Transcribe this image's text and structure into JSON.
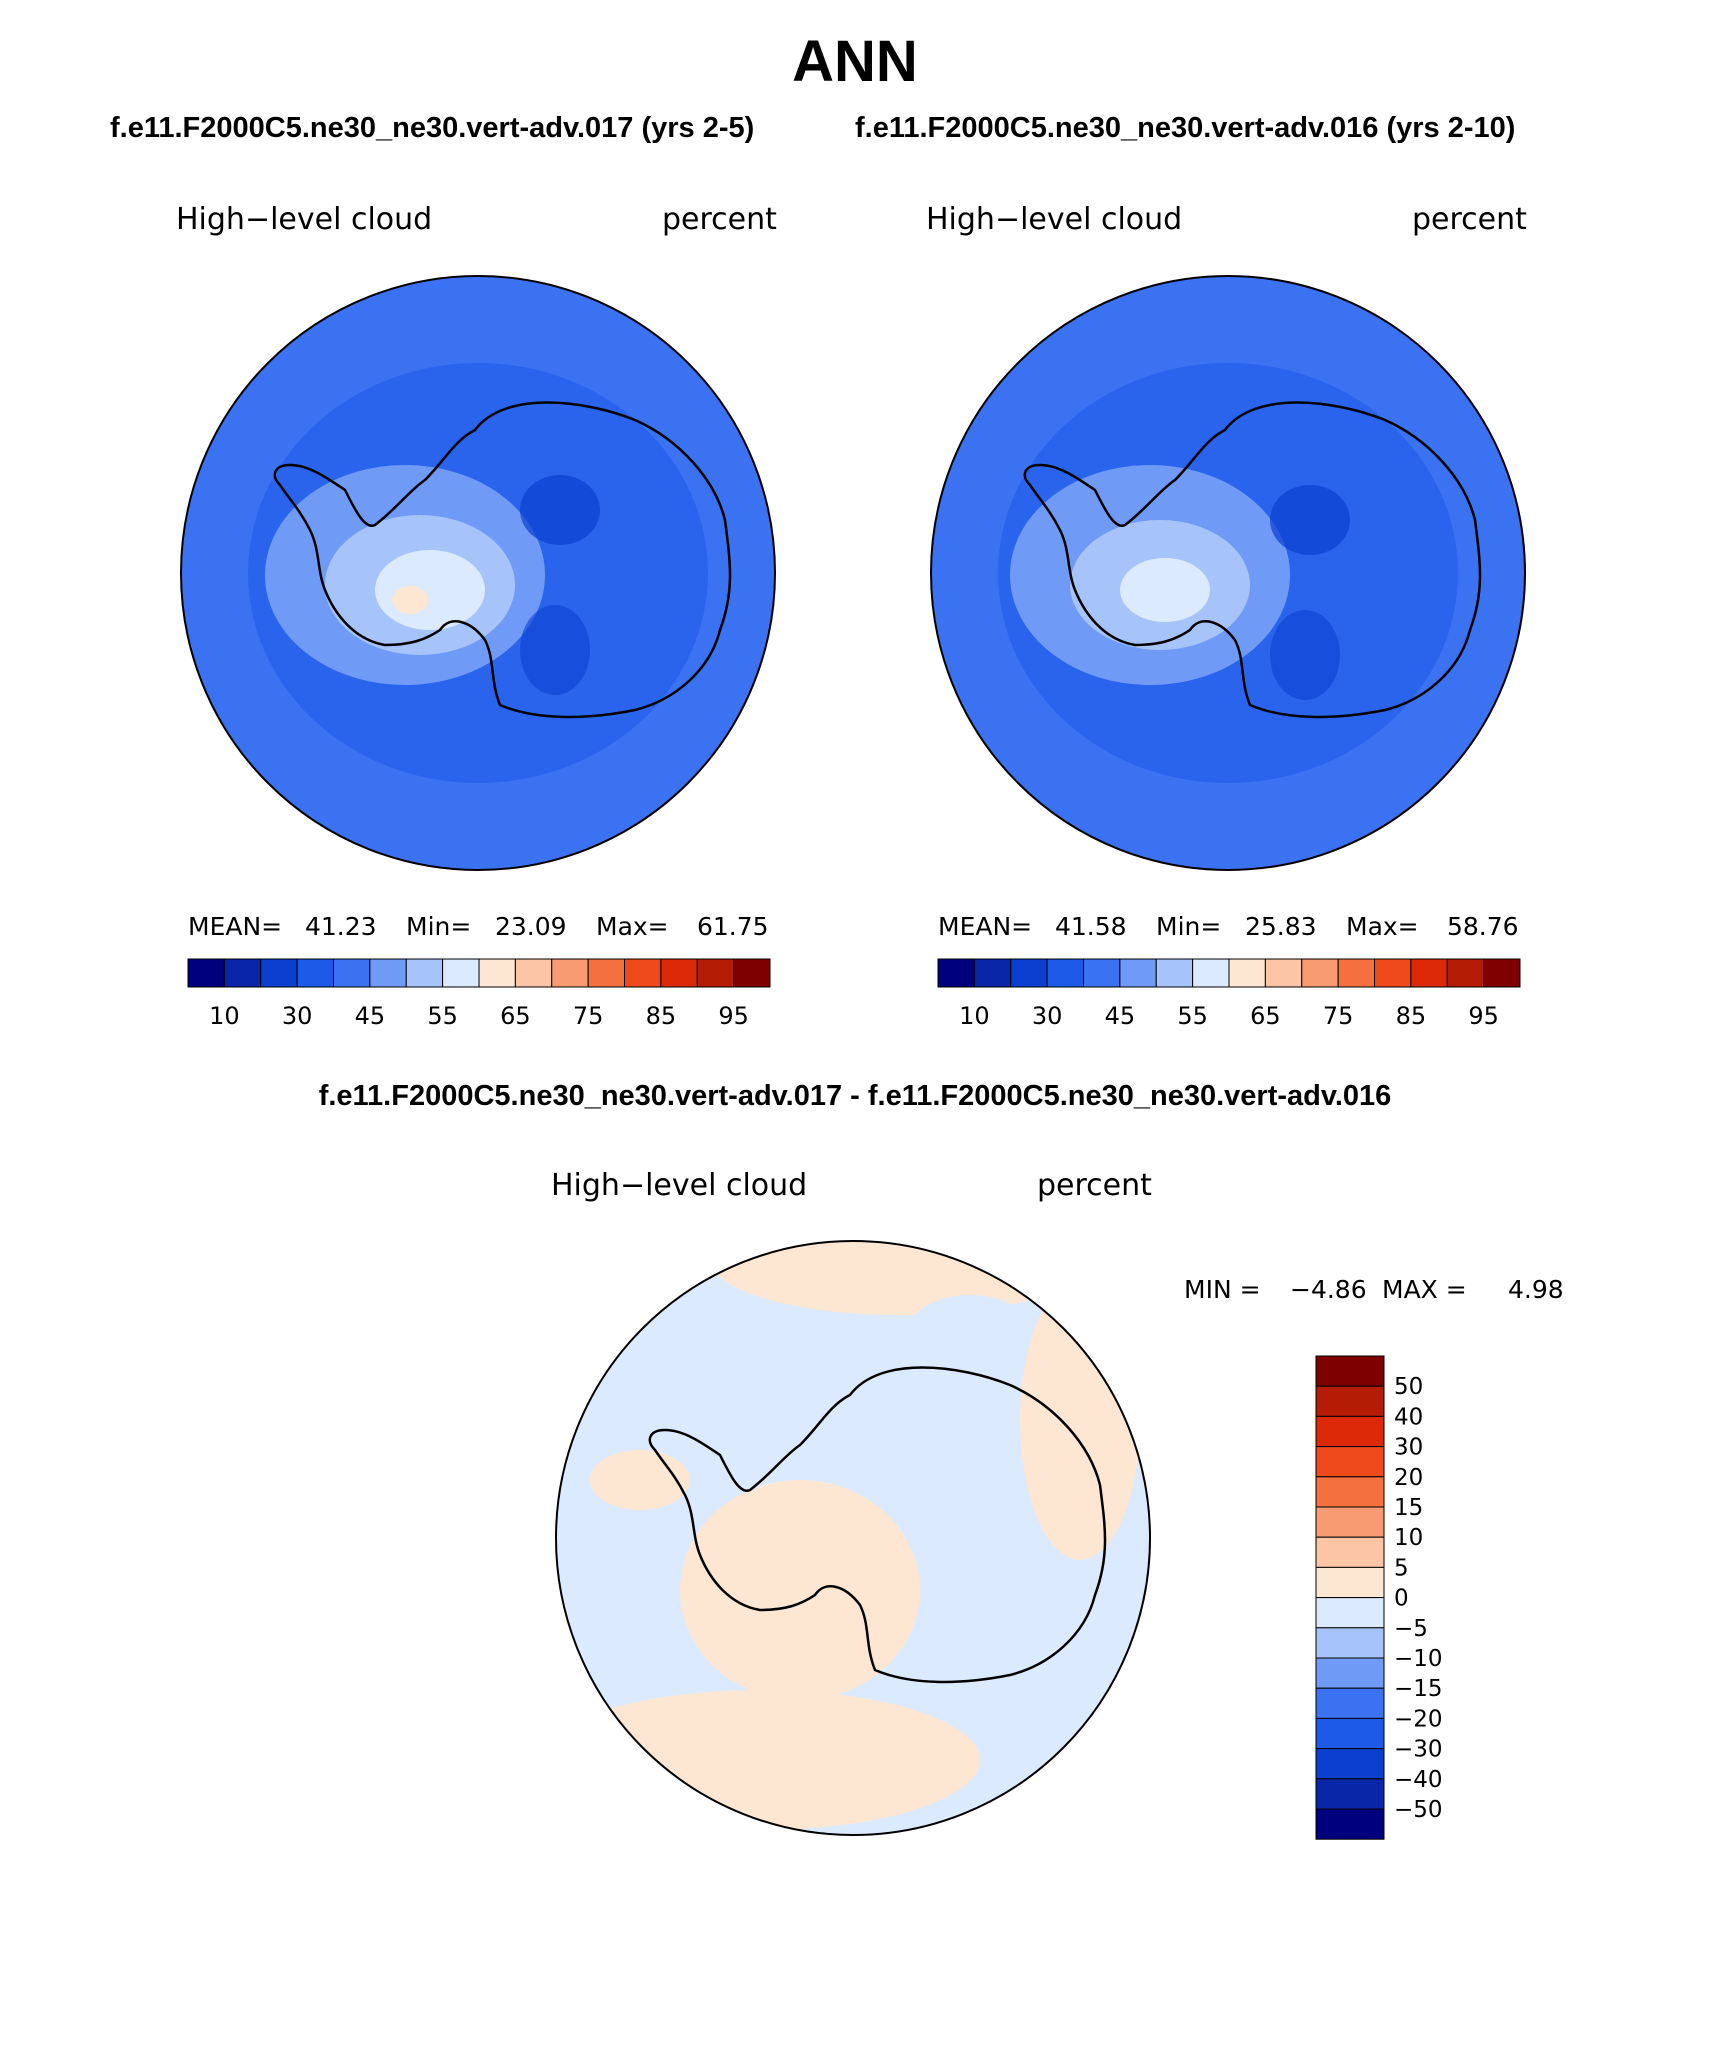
{
  "title": "ANN",
  "case_titles": {
    "left": "f.e11.F2000C5.ne30_ne30.vert-adv.017 (yrs 2-5)",
    "right": "f.e11.F2000C5.ne30_ne30.vert-adv.016 (yrs 2-10)",
    "diff": "f.e11.F2000C5.ne30_ne30.vert-adv.017 - f.e11.F2000C5.ne30_ne30.vert-adv.016"
  },
  "panels": [
    {
      "variable": "High−level cloud",
      "units": "percent",
      "mean_label": "MEAN=",
      "mean_value": "41.23",
      "min_label": "Min=",
      "min_value": "23.09",
      "max_label": "Max=",
      "max_value": "61.75"
    },
    {
      "variable": "High−level cloud",
      "units": "percent",
      "mean_label": "MEAN=",
      "mean_value": "41.58",
      "min_label": "Min=",
      "min_value": "25.83",
      "max_label": "Max=",
      "max_value": "58.76"
    },
    {
      "variable": "High−level cloud",
      "units": "percent",
      "min_label": "MIN =",
      "min_value": "−4.86",
      "max_label": "MAX =",
      "max_value": "4.98"
    }
  ],
  "abs_colorbar": {
    "colors": [
      "#00007f",
      "#0a26a8",
      "#0b3fd0",
      "#1d5ae8",
      "#3a72f2",
      "#6f9af6",
      "#a7c4fa",
      "#dbeafe",
      "#fee7d2",
      "#fcc5a5",
      "#f99b72",
      "#f5703f",
      "#ee4a1c",
      "#dc2a08",
      "#b51c06",
      "#7f0000"
    ],
    "tick_labels": [
      "10",
      "30",
      "45",
      "55",
      "65",
      "75",
      "85",
      "95"
    ]
  },
  "diff_colorbar": {
    "colors": [
      "#7f0000",
      "#b51c06",
      "#dc2a08",
      "#ee4a1c",
      "#f5703f",
      "#f99b72",
      "#fcc5a5",
      "#fee7d2",
      "#dbeafe",
      "#a7c4fa",
      "#6f9af6",
      "#3a72f2",
      "#1d5ae8",
      "#0b3fd0",
      "#0a26a8",
      "#00007f"
    ],
    "tick_labels": [
      "50",
      "40",
      "30",
      "20",
      "15",
      "10",
      "5",
      "0",
      "−5",
      "−10",
      "−15",
      "−20",
      "−30",
      "−40",
      "−50"
    ]
  },
  "map_colors": {
    "ocean_mid": "#3a72f2",
    "ocean_dark": "#1d5ae8",
    "light": "#6f9af6",
    "lighter": "#a7c4fa",
    "lightest": "#dbeafe",
    "peach": "#fee7d2",
    "diff_blue": "#dbeafe",
    "diff_peach": "#fee7d2"
  }
}
